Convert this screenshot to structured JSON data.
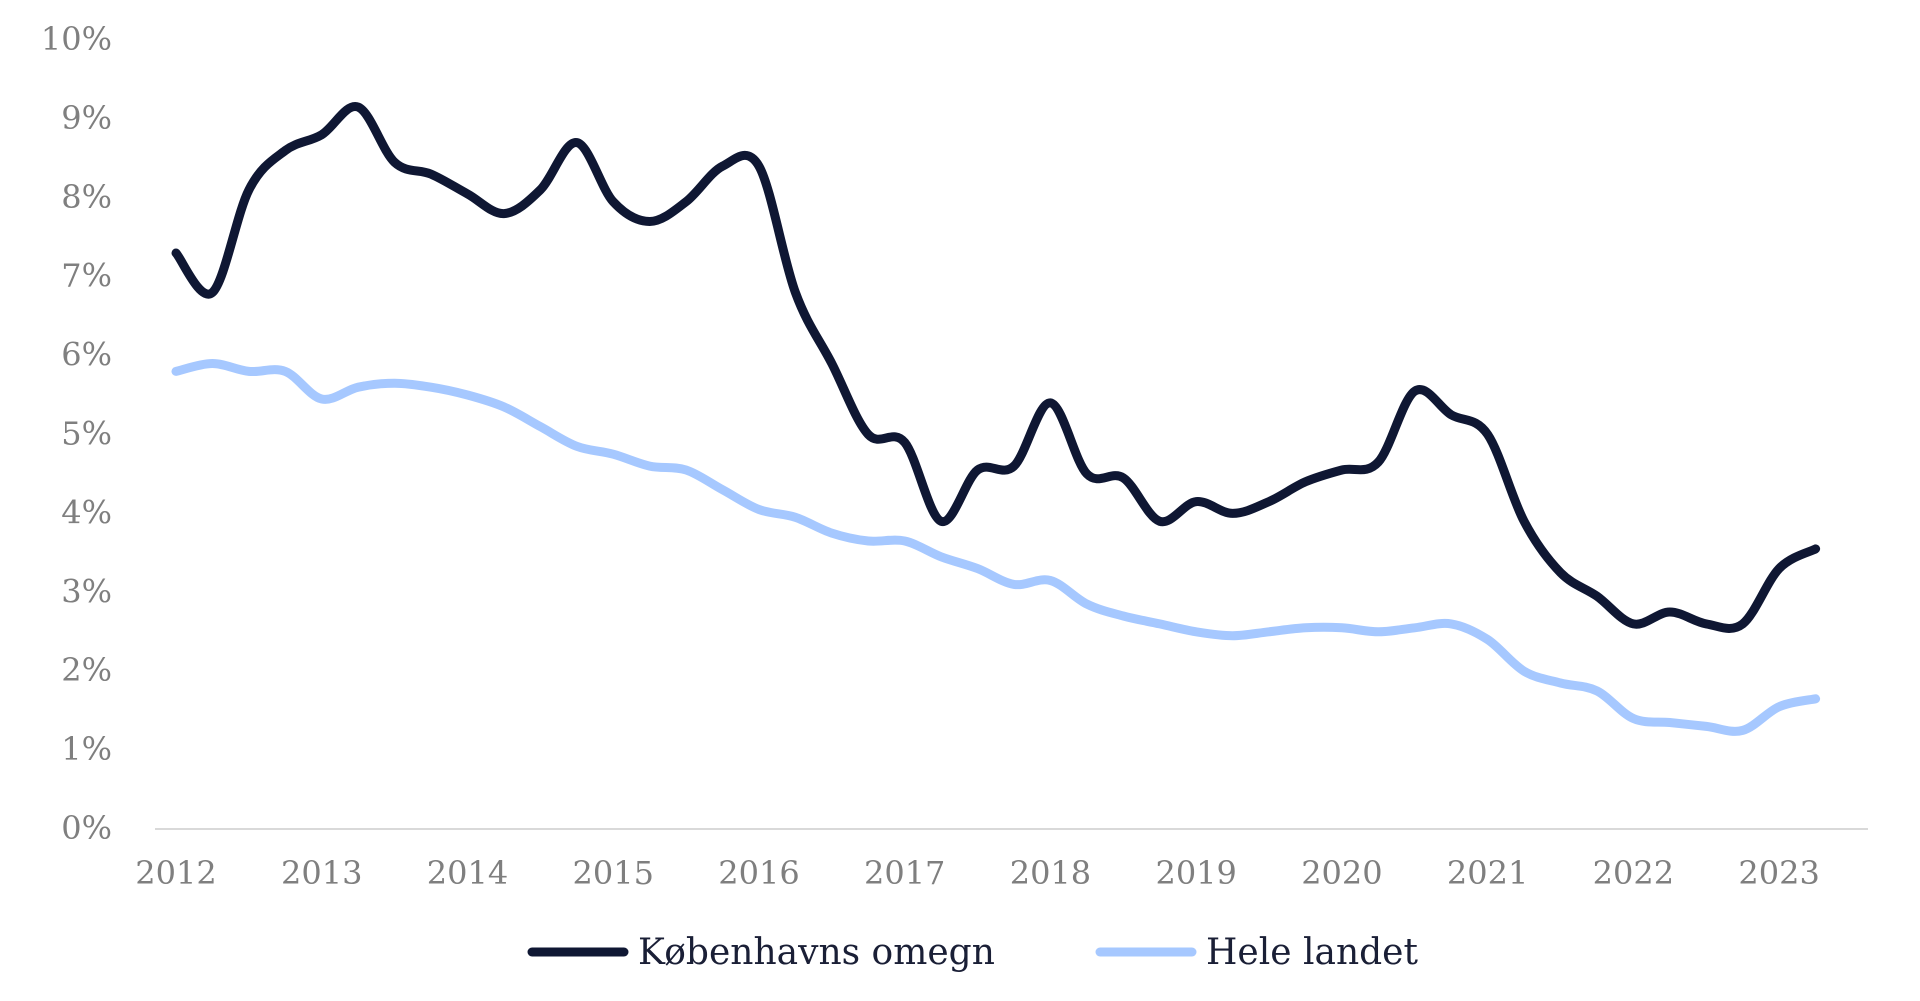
{
  "chart_data": {
    "type": "line",
    "title": "",
    "xlabel": "",
    "ylabel": "",
    "x_ticks": [
      "2012",
      "2013",
      "2014",
      "2015",
      "2016",
      "2017",
      "2018",
      "2019",
      "2020",
      "2021",
      "2022",
      "2023"
    ],
    "y_ticks": [
      "0%",
      "1%",
      "2%",
      "3%",
      "4%",
      "5%",
      "6%",
      "7%",
      "8%",
      "9%",
      "10%"
    ],
    "xlim": [
      2012.0,
      2023.5
    ],
    "ylim": [
      0,
      10
    ],
    "grid": false,
    "legend_position": "bottom",
    "series": [
      {
        "name": "Københavns omegn",
        "color": "#0f1733",
        "points": [
          [
            2012.0,
            7.3
          ],
          [
            2012.25,
            6.8
          ],
          [
            2012.5,
            8.1
          ],
          [
            2012.75,
            8.6
          ],
          [
            2013.0,
            8.8
          ],
          [
            2013.25,
            9.15
          ],
          [
            2013.5,
            8.45
          ],
          [
            2013.75,
            8.3
          ],
          [
            2014.0,
            8.05
          ],
          [
            2014.25,
            7.8
          ],
          [
            2014.5,
            8.1
          ],
          [
            2014.75,
            8.7
          ],
          [
            2015.0,
            7.95
          ],
          [
            2015.25,
            7.7
          ],
          [
            2015.5,
            7.95
          ],
          [
            2015.75,
            8.4
          ],
          [
            2016.0,
            8.4
          ],
          [
            2016.25,
            6.8
          ],
          [
            2016.5,
            5.9
          ],
          [
            2016.75,
            5.0
          ],
          [
            2017.0,
            4.9
          ],
          [
            2017.25,
            3.9
          ],
          [
            2017.5,
            4.55
          ],
          [
            2017.75,
            4.6
          ],
          [
            2018.0,
            5.4
          ],
          [
            2018.25,
            4.5
          ],
          [
            2018.5,
            4.45
          ],
          [
            2018.75,
            3.9
          ],
          [
            2019.0,
            4.15
          ],
          [
            2019.25,
            4.0
          ],
          [
            2019.5,
            4.15
          ],
          [
            2019.75,
            4.4
          ],
          [
            2020.0,
            4.55
          ],
          [
            2020.25,
            4.65
          ],
          [
            2020.5,
            5.55
          ],
          [
            2020.75,
            5.25
          ],
          [
            2021.0,
            5.0
          ],
          [
            2021.25,
            3.9
          ],
          [
            2021.5,
            3.25
          ],
          [
            2021.75,
            2.95
          ],
          [
            2022.0,
            2.6
          ],
          [
            2022.25,
            2.75
          ],
          [
            2022.5,
            2.6
          ],
          [
            2022.75,
            2.6
          ],
          [
            2023.0,
            3.3
          ],
          [
            2023.25,
            3.55
          ]
        ]
      },
      {
        "name": "Hele landet",
        "color": "#a6c8ff",
        "points": [
          [
            2012.0,
            5.8
          ],
          [
            2012.25,
            5.9
          ],
          [
            2012.5,
            5.8
          ],
          [
            2012.75,
            5.8
          ],
          [
            2013.0,
            5.45
          ],
          [
            2013.25,
            5.6
          ],
          [
            2013.5,
            5.65
          ],
          [
            2013.75,
            5.6
          ],
          [
            2014.0,
            5.5
          ],
          [
            2014.25,
            5.35
          ],
          [
            2014.5,
            5.1
          ],
          [
            2014.75,
            4.85
          ],
          [
            2015.0,
            4.75
          ],
          [
            2015.25,
            4.6
          ],
          [
            2015.5,
            4.55
          ],
          [
            2015.75,
            4.3
          ],
          [
            2016.0,
            4.05
          ],
          [
            2016.25,
            3.95
          ],
          [
            2016.5,
            3.75
          ],
          [
            2016.75,
            3.65
          ],
          [
            2017.0,
            3.65
          ],
          [
            2017.25,
            3.45
          ],
          [
            2017.5,
            3.3
          ],
          [
            2017.75,
            3.1
          ],
          [
            2018.0,
            3.15
          ],
          [
            2018.25,
            2.85
          ],
          [
            2018.5,
            2.7
          ],
          [
            2018.75,
            2.6
          ],
          [
            2019.0,
            2.5
          ],
          [
            2019.25,
            2.45
          ],
          [
            2019.5,
            2.5
          ],
          [
            2019.75,
            2.55
          ],
          [
            2020.0,
            2.55
          ],
          [
            2020.25,
            2.5
          ],
          [
            2020.5,
            2.55
          ],
          [
            2020.75,
            2.6
          ],
          [
            2021.0,
            2.4
          ],
          [
            2021.25,
            2.0
          ],
          [
            2021.5,
            1.85
          ],
          [
            2021.75,
            1.75
          ],
          [
            2022.0,
            1.4
          ],
          [
            2022.25,
            1.35
          ],
          [
            2022.5,
            1.3
          ],
          [
            2022.75,
            1.25
          ],
          [
            2023.0,
            1.55
          ],
          [
            2023.25,
            1.65
          ]
        ]
      }
    ]
  }
}
